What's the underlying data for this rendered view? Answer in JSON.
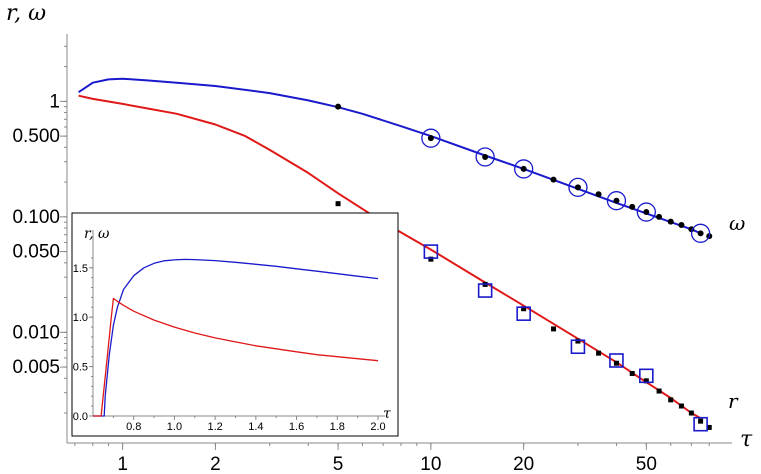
{
  "chart_data": {
    "type": "line",
    "title": "",
    "xscale": "log",
    "yscale": "log",
    "xlabel": "τ",
    "ylabel": "r, ω",
    "xlim": [
      0.66,
      88
    ],
    "ylim": [
      0.0011,
      3.4
    ],
    "xticks": [
      {
        "value": 1,
        "label": "1"
      },
      {
        "value": 2,
        "label": "2"
      },
      {
        "value": 5,
        "label": "5"
      },
      {
        "value": 10,
        "label": "10"
      },
      {
        "value": 20,
        "label": "20"
      },
      {
        "value": 50,
        "label": "50"
      }
    ],
    "yticks": [
      {
        "value": 1,
        "label": "1"
      },
      {
        "value": 0.5,
        "label": "0.500"
      },
      {
        "value": 0.1,
        "label": "0.100"
      },
      {
        "value": 0.05,
        "label": "0.050"
      },
      {
        "value": 0.01,
        "label": "0.010"
      },
      {
        "value": 0.005,
        "label": "0.005"
      }
    ],
    "series": [
      {
        "name": "ω",
        "kind": "line",
        "color": "#1a1acc",
        "x": [
          0.72,
          0.8,
          0.9,
          1.0,
          1.2,
          1.5,
          2.0,
          3.0,
          4.0,
          5.0,
          6.0,
          8.0,
          10.0,
          15.0,
          20.0,
          30.0,
          40.0,
          50.0,
          60.0,
          70.0,
          75.0
        ],
        "y": [
          1.2,
          1.45,
          1.55,
          1.57,
          1.52,
          1.45,
          1.36,
          1.18,
          1.02,
          0.89,
          0.78,
          0.61,
          0.5,
          0.34,
          0.26,
          0.175,
          0.132,
          0.107,
          0.09,
          0.078,
          0.072
        ]
      },
      {
        "name": "r",
        "kind": "line",
        "color": "#e01818",
        "x": [
          0.72,
          0.8,
          1.0,
          1.2,
          1.5,
          2.0,
          2.5,
          3.0,
          4.0,
          5.0,
          7.0,
          10.0,
          15.0,
          20.0,
          30.0,
          40.0,
          50.0,
          60.0,
          70.0,
          75.0
        ],
        "y": [
          1.12,
          1.05,
          0.95,
          0.87,
          0.78,
          0.63,
          0.5,
          0.38,
          0.24,
          0.16,
          0.09,
          0.052,
          0.027,
          0.017,
          0.0088,
          0.0055,
          0.0037,
          0.0027,
          0.002,
          0.0018
        ]
      },
      {
        "name": "ω points",
        "kind": "dots",
        "color": "#000000",
        "x": [
          5,
          10,
          15,
          20,
          25,
          30,
          35,
          40,
          45,
          50,
          55,
          60,
          65,
          70,
          75,
          80
        ],
        "y": [
          0.9,
          0.48,
          0.33,
          0.26,
          0.21,
          0.18,
          0.157,
          0.138,
          0.122,
          0.11,
          0.1,
          0.091,
          0.085,
          0.078,
          0.072,
          0.068
        ]
      },
      {
        "name": "ω circled",
        "kind": "circles",
        "color": "#1a1acc",
        "x": [
          10,
          15,
          20,
          30,
          40,
          50,
          75
        ],
        "y": [
          0.48,
          0.33,
          0.26,
          0.18,
          0.138,
          0.11,
          0.072
        ]
      },
      {
        "name": "r points",
        "kind": "squares-filled",
        "color": "#000000",
        "x": [
          5,
          10,
          15,
          20,
          25,
          30,
          35,
          40,
          45,
          50,
          55,
          60,
          65,
          70,
          75,
          80
        ],
        "y": [
          0.13,
          0.043,
          0.026,
          0.016,
          0.0107,
          0.0084,
          0.0066,
          0.0054,
          0.0044,
          0.0038,
          0.0031,
          0.0026,
          0.0023,
          0.002,
          0.0017,
          0.0015
        ]
      },
      {
        "name": "r boxed",
        "kind": "squares-open",
        "color": "#1a1acc",
        "x": [
          10,
          15,
          20,
          30,
          40,
          50,
          75
        ],
        "y": [
          0.05,
          0.023,
          0.0145,
          0.0075,
          0.0057,
          0.0042,
          0.0016
        ]
      }
    ],
    "annotations": [
      {
        "text": "ω",
        "near_series": "ω"
      },
      {
        "text": "r",
        "near_series": "r"
      }
    ],
    "inset": {
      "type": "line",
      "xscale": "linear",
      "yscale": "linear",
      "xlabel": "τ",
      "ylabel": "r, ω",
      "xlim": [
        0.6,
        2.0
      ],
      "ylim": [
        0.0,
        1.7
      ],
      "xticks": [
        0.8,
        1.0,
        1.2,
        1.4,
        1.6,
        1.8,
        2.0
      ],
      "xtick_labels": [
        "0.8",
        "1.0",
        "1.2",
        "1.4",
        "1.6",
        "1.8",
        "2.0"
      ],
      "yticks": [
        0.0,
        0.5,
        1.0,
        1.5
      ],
      "ytick_labels": [
        "0.0",
        "0.5",
        "1.0",
        "1.5"
      ],
      "series": [
        {
          "name": "ω",
          "color": "#1a1acc",
          "x": [
            0.6,
            0.655,
            0.66,
            0.68,
            0.7,
            0.72,
            0.75,
            0.8,
            0.85,
            0.9,
            0.95,
            1.0,
            1.05,
            1.1,
            1.2,
            1.3,
            1.4,
            1.5,
            1.6,
            1.7,
            1.8,
            1.9,
            2.0
          ],
          "y": [
            0.0,
            0.0,
            0.2,
            0.62,
            0.92,
            1.1,
            1.28,
            1.42,
            1.5,
            1.545,
            1.57,
            1.58,
            1.585,
            1.583,
            1.573,
            1.555,
            1.535,
            1.515,
            1.49,
            1.465,
            1.44,
            1.415,
            1.39
          ]
        },
        {
          "name": "r",
          "color": "#e01818",
          "x": [
            0.6,
            0.64,
            0.655,
            0.67,
            0.69,
            0.7,
            0.72,
            0.75,
            0.8,
            0.9,
            1.0,
            1.1,
            1.2,
            1.3,
            1.4,
            1.5,
            1.6,
            1.7,
            1.8,
            1.9,
            2.0
          ],
          "y": [
            0.0,
            0.0,
            0.3,
            0.6,
            1.0,
            1.19,
            1.16,
            1.12,
            1.06,
            0.97,
            0.9,
            0.84,
            0.79,
            0.75,
            0.71,
            0.68,
            0.65,
            0.62,
            0.6,
            0.58,
            0.56
          ]
        }
      ]
    }
  }
}
